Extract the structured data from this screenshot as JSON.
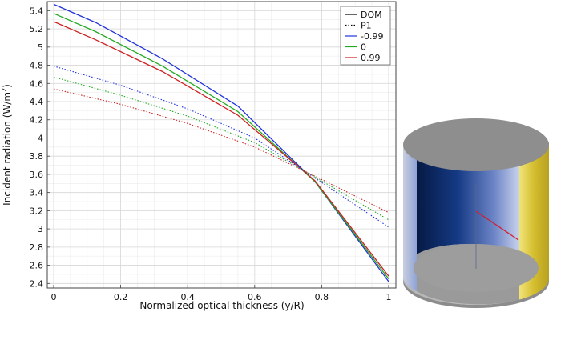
{
  "chart_data": {
    "type": "line",
    "title": "",
    "xlabel": "Normalized optical thickness (y/R)",
    "ylabel_main": "Incident radiation (W/m",
    "ylabel_sup": "2",
    "ylabel_close": ")",
    "xlim": [
      0,
      1
    ],
    "ylim": [
      2.35,
      5.5
    ],
    "xticks": [
      0,
      0.2,
      0.4,
      0.6,
      0.8,
      1
    ],
    "xtick_labels": [
      "0",
      "0.2",
      "0.4",
      "0.6",
      "0.8",
      "1"
    ],
    "yticks": [
      2.4,
      2.6,
      2.8,
      3,
      3.2,
      3.4,
      3.6,
      3.8,
      4,
      4.2,
      4.4,
      4.6,
      4.8,
      5,
      5.2,
      5.4
    ],
    "ytick_labels": [
      "2.4",
      "2.6",
      "2.8",
      "3",
      "3.2",
      "3.4",
      "3.6",
      "3.8",
      "4",
      "4.2",
      "4.4",
      "4.6",
      "4.8",
      "5",
      "5.2",
      "5.4"
    ],
    "grid": true,
    "legend_position": "top-right",
    "legend": [
      {
        "label": "DOM",
        "color": "#000000",
        "dash": "solid"
      },
      {
        "label": "P1",
        "color": "#000000",
        "dash": "dotted"
      },
      {
        "label": "-0.99",
        "color": "#2233dd",
        "dash": "solid"
      },
      {
        "label": "0",
        "color": "#22aa22",
        "dash": "solid"
      },
      {
        "label": "0.99",
        "color": "#cc2222",
        "dash": "solid"
      }
    ],
    "series": [
      {
        "method": "DOM",
        "asymmetry": "-0.99",
        "color": "#2233dd",
        "dash": "solid",
        "x": [
          0,
          0.125,
          0.325,
          0.55,
          0.78,
          1.0
        ],
        "y": [
          5.47,
          5.27,
          4.87,
          4.35,
          3.52,
          2.42
        ]
      },
      {
        "method": "DOM",
        "asymmetry": "0",
        "color": "#22aa22",
        "dash": "solid",
        "x": [
          0,
          0.125,
          0.325,
          0.55,
          0.78,
          1.0
        ],
        "y": [
          5.37,
          5.17,
          4.79,
          4.29,
          3.52,
          2.45
        ]
      },
      {
        "method": "DOM",
        "asymmetry": "0.99",
        "color": "#cc2222",
        "dash": "solid",
        "x": [
          0,
          0.125,
          0.325,
          0.55,
          0.78,
          1.0
        ],
        "y": [
          5.28,
          5.08,
          4.73,
          4.25,
          3.53,
          2.48
        ]
      },
      {
        "method": "P1",
        "asymmetry": "-0.99",
        "color": "#2233dd",
        "dash": "dotted",
        "x": [
          0,
          0.2,
          0.4,
          0.6,
          0.78,
          1.0
        ],
        "y": [
          4.79,
          4.58,
          4.32,
          4.0,
          3.56,
          3.02
        ]
      },
      {
        "method": "P1",
        "asymmetry": "0",
        "color": "#22aa22",
        "dash": "dotted",
        "x": [
          0,
          0.2,
          0.4,
          0.6,
          0.78,
          1.0
        ],
        "y": [
          4.67,
          4.47,
          4.24,
          3.95,
          3.57,
          3.1
        ]
      },
      {
        "method": "P1",
        "asymmetry": "0.99",
        "color": "#cc2222",
        "dash": "dotted",
        "x": [
          0,
          0.2,
          0.4,
          0.6,
          0.78,
          1.0
        ],
        "y": [
          4.54,
          4.37,
          4.16,
          3.9,
          3.58,
          3.18
        ]
      }
    ]
  }
}
